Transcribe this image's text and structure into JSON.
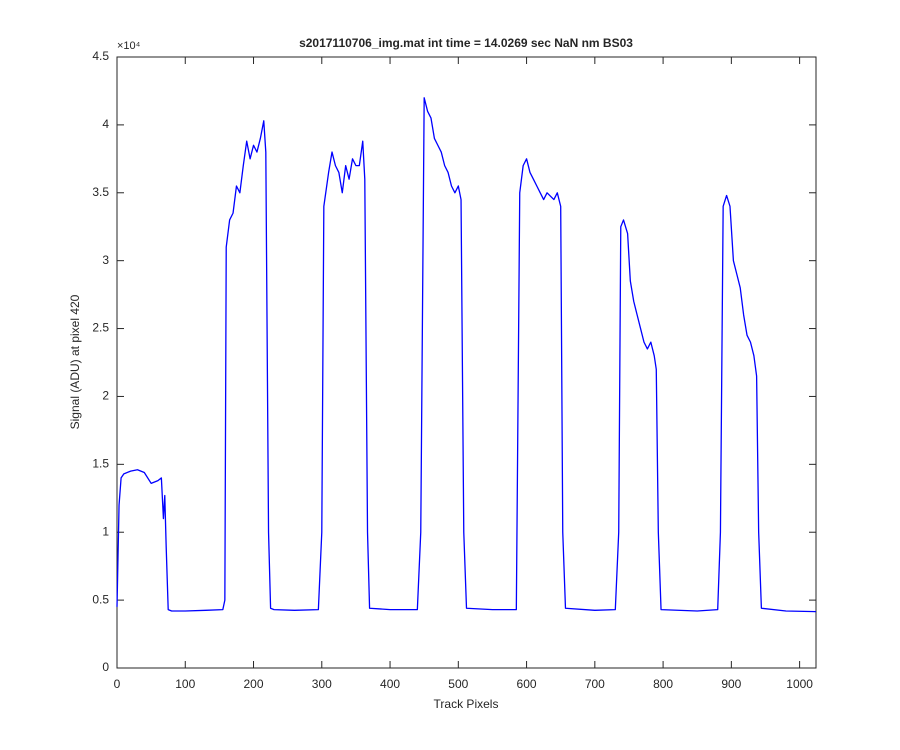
{
  "chart_data": {
    "type": "line",
    "title": "s2017110706_img.mat int time = 14.0269 sec  NaN nm BS03",
    "x_label": "Track Pixels",
    "y_label": "Signal (ADU) at pixel 420",
    "y_multiplier": "×10⁴",
    "color": "#0000ff",
    "x": [
      0,
      3,
      6,
      10,
      20,
      30,
      40,
      50,
      60,
      65,
      68,
      70,
      72,
      75,
      80,
      100,
      130,
      155,
      158,
      160,
      165,
      170,
      175,
      180,
      185,
      190,
      195,
      200,
      205,
      210,
      215,
      218,
      222,
      225,
      230,
      260,
      295,
      300,
      303,
      310,
      315,
      320,
      325,
      330,
      335,
      340,
      345,
      350,
      355,
      360,
      363,
      367,
      370,
      400,
      440,
      445,
      450,
      455,
      460,
      465,
      470,
      475,
      480,
      485,
      490,
      495,
      500,
      504,
      508,
      512,
      550,
      585,
      590,
      595,
      600,
      605,
      610,
      615,
      620,
      625,
      630,
      640,
      645,
      650,
      653,
      657,
      700,
      730,
      735,
      738,
      742,
      748,
      752,
      757,
      762,
      767,
      772,
      777,
      782,
      787,
      790,
      793,
      797,
      850,
      880,
      884,
      888,
      893,
      898,
      903,
      908,
      913,
      918,
      923,
      928,
      933,
      937,
      940,
      944,
      980,
      1024
    ],
    "values": [
      4500,
      12000,
      14000,
      14300,
      14500,
      14600,
      14400,
      13600,
      13800,
      14000,
      11000,
      12700,
      9000,
      4300,
      4200,
      4200,
      4250,
      4300,
      5000,
      31000,
      33000,
      33500,
      35500,
      35000,
      37000,
      38800,
      37500,
      38500,
      38000,
      39000,
      40300,
      38000,
      10000,
      4400,
      4300,
      4250,
      4300,
      10000,
      34000,
      36500,
      38000,
      37000,
      36500,
      35000,
      37000,
      36000,
      37500,
      37000,
      37000,
      38800,
      36000,
      10000,
      4400,
      4300,
      4300,
      10000,
      42000,
      41000,
      40500,
      39000,
      38500,
      38000,
      37000,
      36500,
      35500,
      35000,
      35500,
      34500,
      10000,
      4400,
      4300,
      4300,
      35000,
      37000,
      37500,
      36500,
      36000,
      35500,
      35000,
      34500,
      35000,
      34500,
      35000,
      34000,
      10000,
      4400,
      4250,
      4300,
      10000,
      32500,
      33000,
      32000,
      28500,
      27000,
      26000,
      25000,
      24000,
      23500,
      24000,
      23000,
      22000,
      10000,
      4300,
      4200,
      4300,
      10000,
      34000,
      34800,
      34000,
      30000,
      29000,
      28000,
      26000,
      24500,
      24000,
      23000,
      21500,
      10000,
      4400,
      4200,
      4150
    ],
    "xlim": [
      0,
      1024
    ],
    "xticks": [
      0,
      100,
      200,
      300,
      400,
      500,
      600,
      700,
      800,
      900,
      1000
    ],
    "ylim": [
      0,
      45000
    ],
    "yticks": [
      {
        "value": 0,
        "label": "0"
      },
      {
        "value": 5000,
        "label": "0.5"
      },
      {
        "value": 10000,
        "label": "1"
      },
      {
        "value": 15000,
        "label": "1.5"
      },
      {
        "value": 20000,
        "label": "2"
      },
      {
        "value": 25000,
        "label": "2.5"
      },
      {
        "value": 30000,
        "label": "3"
      },
      {
        "value": 35000,
        "label": "3.5"
      },
      {
        "value": 40000,
        "label": "4"
      },
      {
        "value": 45000,
        "label": "4.5"
      }
    ]
  }
}
